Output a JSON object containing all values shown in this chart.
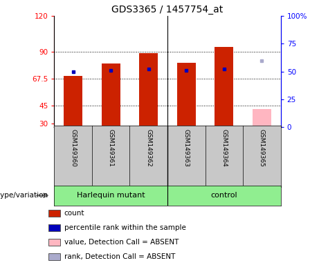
{
  "title": "GDS3365 / 1457754_at",
  "samples": [
    "GSM149360",
    "GSM149361",
    "GSM149362",
    "GSM149363",
    "GSM149364",
    "GSM149365"
  ],
  "count_values": [
    70,
    80,
    89,
    81,
    94,
    null
  ],
  "rank_values": [
    50,
    51,
    52,
    51,
    52,
    null
  ],
  "absent_value": 42,
  "absent_rank": 60,
  "ylim_left": [
    27,
    120
  ],
  "ylim_right": [
    0,
    100
  ],
  "yticks_left": [
    30,
    45,
    67.5,
    90,
    120
  ],
  "yticks_right": [
    0,
    25,
    50,
    75,
    100
  ],
  "ytick_labels_left": [
    "30",
    "45",
    "67.5",
    "90",
    "120"
  ],
  "ytick_labels_right": [
    "0",
    "25",
    "50",
    "75",
    "100%"
  ],
  "hgrid_values": [
    45,
    67.5,
    90
  ],
  "groups": [
    {
      "label": "Harlequin mutant",
      "start": 0,
      "end": 3,
      "color": "#90EE90"
    },
    {
      "label": "control",
      "start": 3,
      "end": 6,
      "color": "#90EE90"
    }
  ],
  "bar_color_red": "#CC2200",
  "bar_color_blue": "#0000BB",
  "bar_color_pink": "#FFB6C1",
  "bar_color_lightblue": "#AAAACC",
  "bar_width": 0.5,
  "group_label": "genotype/variation",
  "legend_items": [
    {
      "color": "#CC2200",
      "label": "count"
    },
    {
      "color": "#0000BB",
      "label": "percentile rank within the sample"
    },
    {
      "color": "#FFB6C1",
      "label": "value, Detection Call = ABSENT"
    },
    {
      "color": "#AAAACC",
      "label": "rank, Detection Call = ABSENT"
    }
  ],
  "background_color": "#FFFFFF",
  "label_area_color": "#C8C8C8",
  "group_area_color": "#90EE90"
}
